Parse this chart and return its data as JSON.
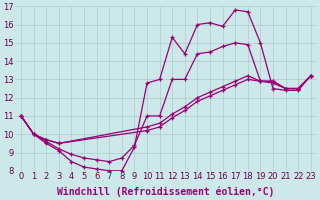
{
  "xlabel": "Windchill (Refroidissement éolien,°C)",
  "ylabel": "",
  "xlim": [
    -0.5,
    23.5
  ],
  "ylim": [
    8,
    17
  ],
  "background_color": "#cce8e8",
  "grid_color": "#aacccc",
  "line_color": "#990077",
  "line_width": 0.9,
  "marker": "+",
  "markersize": 3.5,
  "markeredgewidth": 0.9,
  "lines": [
    {
      "x": [
        0,
        1,
        2,
        3,
        4,
        5,
        6,
        7,
        8,
        9,
        10,
        11,
        12,
        13,
        14,
        15,
        16,
        17,
        18,
        19,
        20,
        21,
        22,
        23
      ],
      "y": [
        11,
        10,
        9.5,
        9.1,
        8.5,
        8.2,
        8.1,
        8.0,
        8.0,
        9.3,
        12.8,
        13.0,
        15.3,
        14.4,
        16.0,
        16.1,
        15.9,
        16.8,
        16.7,
        15.0,
        12.5,
        12.4,
        12.4,
        13.2
      ]
    },
    {
      "x": [
        0,
        1,
        2,
        3,
        4,
        5,
        6,
        7,
        8,
        9,
        10,
        11,
        12,
        13,
        14,
        15,
        16,
        17,
        18,
        19,
        20,
        21,
        22,
        23
      ],
      "y": [
        11,
        10,
        9.6,
        9.2,
        8.9,
        8.7,
        8.6,
        8.5,
        8.7,
        9.4,
        11.0,
        11.0,
        13.0,
        13.0,
        14.4,
        14.5,
        14.8,
        15.0,
        14.9,
        12.9,
        12.8,
        12.5,
        12.5,
        13.2
      ]
    },
    {
      "x": [
        0,
        1,
        2,
        3,
        10,
        11,
        12,
        13,
        14,
        15,
        16,
        17,
        18,
        19,
        20,
        21,
        22,
        23
      ],
      "y": [
        11,
        10,
        9.7,
        9.5,
        10.4,
        10.6,
        11.1,
        11.5,
        12.0,
        12.3,
        12.6,
        12.9,
        13.2,
        12.9,
        12.9,
        12.5,
        12.5,
        13.2
      ]
    },
    {
      "x": [
        0,
        1,
        2,
        3,
        10,
        11,
        12,
        13,
        14,
        15,
        16,
        17,
        18,
        19,
        20,
        21,
        22,
        23
      ],
      "y": [
        11,
        10,
        9.7,
        9.5,
        10.2,
        10.4,
        10.9,
        11.3,
        11.8,
        12.1,
        12.4,
        12.7,
        13.0,
        12.9,
        12.9,
        12.5,
        12.5,
        13.2
      ]
    }
  ],
  "font_size": 7,
  "tick_fontsize": 6
}
